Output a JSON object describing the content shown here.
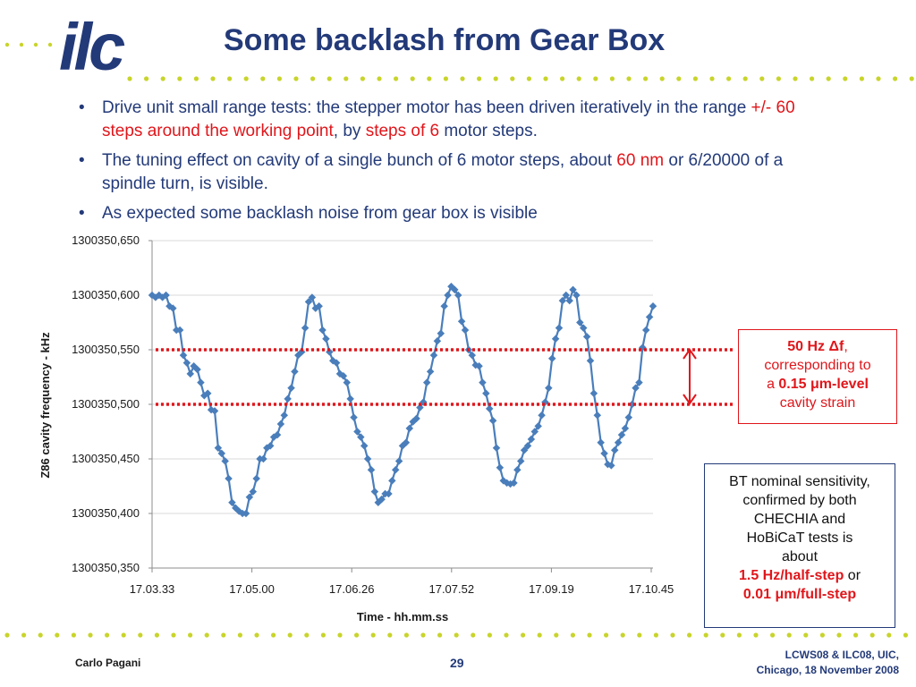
{
  "header": {
    "logo_text": "ilc",
    "title": "Some backlash from Gear Box"
  },
  "bullets": [
    {
      "p1": "Drive unit small range tests: the stepper motor has been driven iteratively in the range ",
      "r1": "+/- 60 steps around the working point",
      "p2": ", by ",
      "r2": "steps of 6",
      "p3": " motor steps."
    },
    {
      "p1": "The tuning effect on cavity of a single bunch of 6 motor steps, about ",
      "r1": "60 nm",
      "p2": " or 6/20000 of a spindle turn, is visible."
    },
    {
      "p1": "As expected some backlash noise from gear box is visible"
    }
  ],
  "box1": {
    "l1a": "50 Hz ",
    "l1b": "Δf",
    "l1c": ",",
    "l2": "corresponding to",
    "l3a": "a ",
    "l3b": "0.15 μm-level",
    "l4": "cavity strain"
  },
  "box2": {
    "l1": "BT nominal sensitivity,",
    "l2": "confirmed by both",
    "l3": "CHECHIA and",
    "l4": "HoBiCaT tests is",
    "l5": "about",
    "l6a": "1.5 Hz/half-step",
    "l6b": " or",
    "l7": "0.01 μm/full-step"
  },
  "footer": {
    "author": "Carlo Pagani",
    "page": "29",
    "event_line1": "LCWS08 & ILC08, UIC,",
    "event_line2": "Chicago, 18 November 2008"
  },
  "colors": {
    "title_blue": "#233a79",
    "accent_red": "#e0161b",
    "series_blue": "#4a7ebb",
    "dot_green": "#c8d42a"
  },
  "chart_data": {
    "type": "line",
    "xlabel": "Time - hh.mm.ss",
    "ylabel": "Z86 cavity frequency - kHz",
    "x_tick_labels": [
      "17.03.33",
      "17.05.00",
      "17.06.26",
      "17.07.52",
      "17.09.19",
      "17.10.45"
    ],
    "y_tick_labels": [
      "1300350,350",
      "1300350,400",
      "1300350,450",
      "1300350,500",
      "1300350,550",
      "1300350,600",
      "1300350,650"
    ],
    "ylim": [
      1300350.35,
      1300350.65
    ],
    "x_range_seconds": [
      0,
      432
    ],
    "reference_lines": [
      1300350.55,
      1300350.5
    ],
    "grid": "horizontal",
    "series": [
      {
        "x": [
          0,
          3,
          6,
          9,
          12,
          15,
          18,
          21,
          24,
          27,
          30,
          33,
          36,
          39,
          42,
          45,
          48,
          51,
          54,
          57,
          60,
          63,
          66,
          69,
          72,
          75,
          78,
          81,
          84,
          87,
          90,
          93,
          96,
          99,
          102,
          105,
          108,
          111,
          114,
          117,
          120,
          123,
          126,
          129,
          132,
          135,
          138,
          141,
          144,
          147,
          150,
          153,
          156,
          159,
          162,
          165,
          168,
          171,
          174,
          177,
          180,
          183,
          186,
          189,
          192,
          195,
          198,
          201,
          204,
          207,
          210,
          213,
          216,
          219,
          222,
          225,
          228,
          231,
          234,
          237,
          240,
          243,
          246,
          249,
          252,
          255,
          258,
          261,
          264,
          267,
          270,
          273,
          276,
          279,
          282,
          285,
          288,
          291,
          294,
          297,
          300,
          303,
          306,
          309,
          312,
          315,
          318,
          321,
          324,
          327,
          330,
          333,
          336,
          339,
          342,
          345,
          348,
          351,
          354,
          357,
          360,
          363,
          366,
          369,
          372,
          375,
          378,
          381,
          384,
          387,
          390,
          393,
          396,
          399,
          402,
          405,
          408,
          411,
          414,
          417,
          420,
          423,
          426,
          429,
          432
        ],
        "values": [
          1300350.6,
          1300350.598,
          1300350.6,
          1300350.598,
          1300350.6,
          1300350.59,
          1300350.588,
          1300350.568,
          1300350.568,
          1300350.545,
          1300350.538,
          1300350.528,
          1300350.535,
          1300350.532,
          1300350.52,
          1300350.508,
          1300350.51,
          1300350.495,
          1300350.494,
          1300350.46,
          1300350.455,
          1300350.448,
          1300350.432,
          1300350.41,
          1300350.405,
          1300350.402,
          1300350.4,
          1300350.4,
          1300350.415,
          1300350.42,
          1300350.432,
          1300350.45,
          1300350.45,
          1300350.46,
          1300350.462,
          1300350.47,
          1300350.472,
          1300350.482,
          1300350.49,
          1300350.505,
          1300350.515,
          1300350.53,
          1300350.545,
          1300350.548,
          1300350.57,
          1300350.594,
          1300350.598,
          1300350.588,
          1300350.59,
          1300350.568,
          1300350.56,
          1300350.548,
          1300350.54,
          1300350.538,
          1300350.528,
          1300350.526,
          1300350.52,
          1300350.505,
          1300350.488,
          1300350.475,
          1300350.47,
          1300350.462,
          1300350.45,
          1300350.44,
          1300350.42,
          1300350.41,
          1300350.413,
          1300350.418,
          1300350.418,
          1300350.43,
          1300350.44,
          1300350.448,
          1300350.462,
          1300350.465,
          1300350.478,
          1300350.484,
          1300350.487,
          1300350.497,
          1300350.502,
          1300350.52,
          1300350.53,
          1300350.545,
          1300350.558,
          1300350.565,
          1300350.59,
          1300350.6,
          1300350.608,
          1300350.605,
          1300350.6,
          1300350.576,
          1300350.568,
          1300350.55,
          1300350.545,
          1300350.536,
          1300350.535,
          1300350.52,
          1300350.51,
          1300350.496,
          1300350.485,
          1300350.46,
          1300350.442,
          1300350.43,
          1300350.428,
          1300350.427,
          1300350.428,
          1300350.44,
          1300350.448,
          1300350.458,
          1300350.462,
          1300350.468,
          1300350.475,
          1300350.48,
          1300350.49,
          1300350.502,
          1300350.515,
          1300350.542,
          1300350.56,
          1300350.57,
          1300350.595,
          1300350.6,
          1300350.595,
          1300350.605,
          1300350.6,
          1300350.575,
          1300350.57,
          1300350.562,
          1300350.54,
          1300350.51,
          1300350.49,
          1300350.465,
          1300350.455,
          1300350.445,
          1300350.444,
          1300350.458,
          1300350.465,
          1300350.472,
          1300350.478,
          1300350.488,
          1300350.5,
          1300350.515,
          1300350.52,
          1300350.552,
          1300350.568,
          1300350.58,
          1300350.59
        ]
      }
    ]
  }
}
